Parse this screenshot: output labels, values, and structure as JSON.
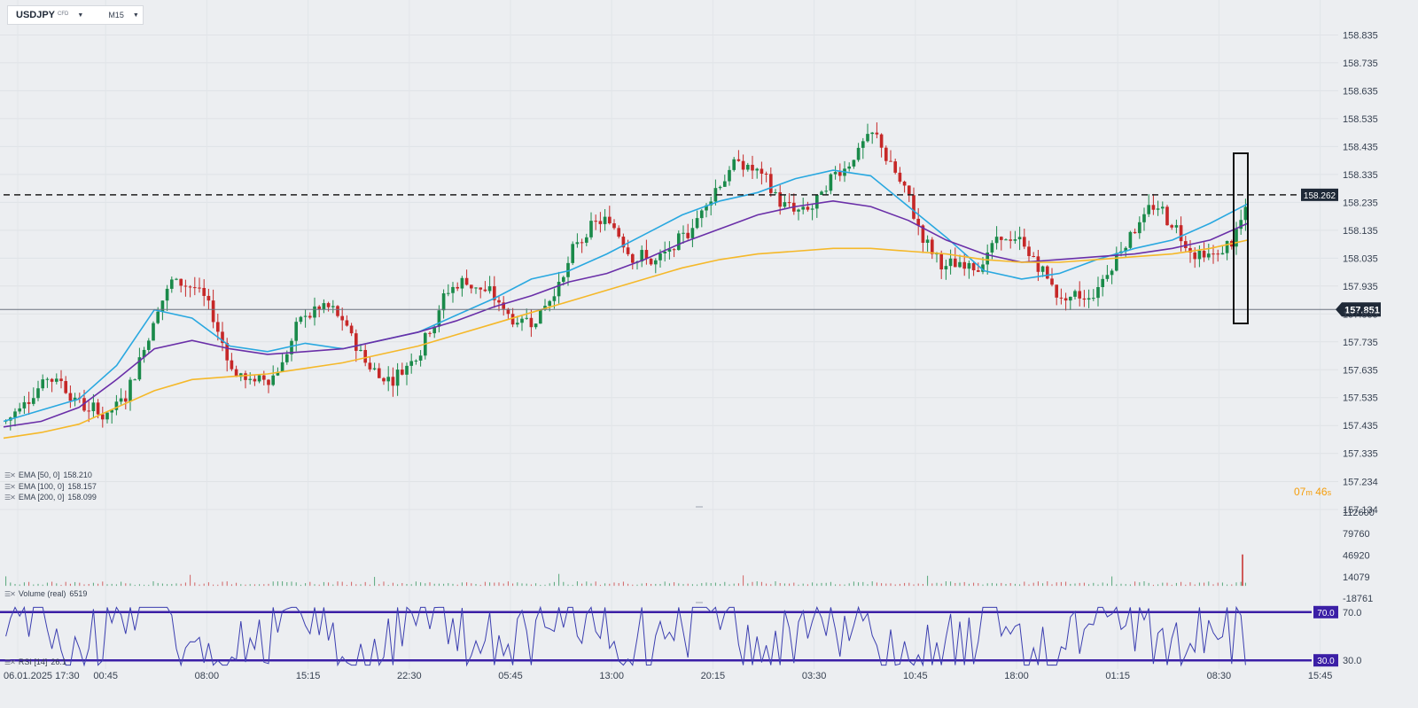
{
  "header": {
    "symbol": "USDJPY",
    "instrument_type": "CFD",
    "interval": "M15"
  },
  "indicators": [
    {
      "label": "EMA  [50,  0]",
      "value": "158.210",
      "color": "#29a8e0"
    },
    {
      "label": "EMA  [100,  0]",
      "value": "158.157",
      "color": "#6a2fa8"
    },
    {
      "label": "EMA  [200,  0]",
      "value": "158.099",
      "color": "#f5b829"
    }
  ],
  "volume_legend": {
    "label": "Volume  (real)",
    "value": "6519"
  },
  "rsi_legend": {
    "label": "RSI  [14]",
    "value": "26.1"
  },
  "countdown": {
    "minutes": "07",
    "m": "m",
    "seconds": "46",
    "s": "s"
  },
  "chart_data": [
    {
      "type": "candlestick",
      "symbol": "USDJPY",
      "interval": "M15",
      "y_ticks": [
        "158.835",
        "158.735",
        "158.635",
        "158.535",
        "158.435",
        "158.335",
        "158.235",
        "158.135",
        "158.035",
        "157.935",
        "157.835",
        "157.735",
        "157.635",
        "157.535",
        "157.435",
        "157.335",
        "157.234",
        "157.134"
      ],
      "ylim": [
        157.134,
        158.865
      ],
      "x_ticks": [
        "06.01.2025  17:30",
        "00:45",
        "08:00",
        "15:15",
        "22:30",
        "05:45",
        "13:00",
        "20:15",
        "03:30",
        "10:45",
        "18:00",
        "01:15",
        "08:30",
        "15:45"
      ],
      "horizontal_level": {
        "value": 158.262,
        "label": "158.262",
        "style": "dashed"
      },
      "current_price": {
        "value": 157.851,
        "label": "157.851"
      },
      "colors": {
        "up": "#1a8a4a",
        "down": "#c62828",
        "ema50": "#29a8e0",
        "ema100": "#6a2fa8",
        "ema200": "#f5b829"
      },
      "series": [
        {
          "name": "EMA [50, 0]",
          "values": [
            157.45,
            157.49,
            157.53,
            157.65,
            157.85,
            157.82,
            157.72,
            157.7,
            157.73,
            157.71,
            157.74,
            157.77,
            157.83,
            157.89,
            157.96,
            157.99,
            158.05,
            158.12,
            158.19,
            158.24,
            158.27,
            158.32,
            158.35,
            158.33,
            158.22,
            158.11,
            157.99,
            157.96,
            157.98,
            158.03,
            158.07,
            158.1,
            158.16,
            158.23
          ]
        },
        {
          "name": "EMA [100, 0]",
          "values": [
            157.43,
            157.45,
            157.5,
            157.6,
            157.71,
            157.74,
            157.71,
            157.69,
            157.7,
            157.71,
            157.74,
            157.77,
            157.81,
            157.86,
            157.9,
            157.95,
            157.98,
            158.03,
            158.09,
            158.14,
            158.19,
            158.22,
            158.24,
            158.22,
            158.17,
            158.1,
            158.05,
            158.02,
            158.03,
            158.04,
            158.05,
            158.07,
            158.1,
            158.16
          ]
        },
        {
          "name": "EMA [200, 0]",
          "values": [
            157.39,
            157.41,
            157.44,
            157.5,
            157.56,
            157.6,
            157.61,
            157.62,
            157.64,
            157.66,
            157.69,
            157.72,
            157.76,
            157.8,
            157.84,
            157.88,
            157.92,
            157.96,
            158.0,
            158.03,
            158.05,
            158.06,
            158.07,
            158.07,
            158.06,
            158.05,
            158.03,
            158.02,
            158.02,
            158.03,
            158.04,
            158.05,
            158.07,
            158.1
          ]
        }
      ]
    },
    {
      "type": "bar",
      "name": "Volume (real)",
      "y_ticks": [
        "112600",
        "79760",
        "46920",
        "14079",
        "-18761"
      ],
      "ylim": [
        -18761,
        112600
      ],
      "last_value": 6519
    },
    {
      "type": "line",
      "name": "RSI [14]",
      "levels": [
        "70.0",
        "30.0"
      ],
      "ylim": [
        25,
        75
      ],
      "last_value": 26.1
    }
  ]
}
